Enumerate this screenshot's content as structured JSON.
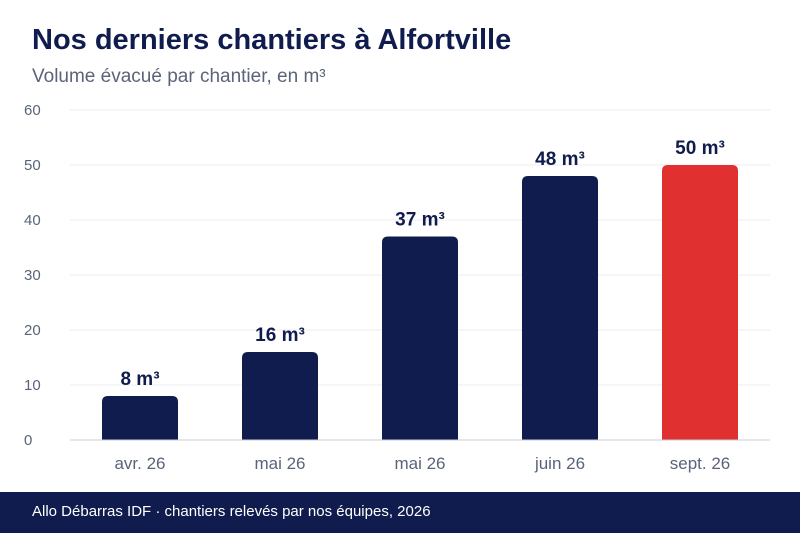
{
  "header": {
    "title": "Nos derniers chantiers à Alfortville",
    "subtitle": "Volume évacué par chantier, en m³"
  },
  "footer": {
    "source": "Allo Débarras IDF · chantiers relevés par nos équipes, 2026"
  },
  "colors": {
    "bar": "#0f1c4d",
    "highlight": "#e03030",
    "grid": "#ececf0",
    "axis_text": "#5a6478",
    "label_text": "#0f1c4d"
  },
  "chart_data": {
    "type": "bar",
    "categories": [
      "avr. 26",
      "mai 26",
      "mai 26",
      "juin 26",
      "sept. 26"
    ],
    "values": [
      8,
      16,
      37,
      48,
      50
    ],
    "value_labels": [
      "8 m³",
      "16 m³",
      "37 m³",
      "48 m³",
      "50 m³"
    ],
    "highlight_index": 4,
    "ylim": [
      0,
      60
    ],
    "yticks": [
      0,
      10,
      20,
      30,
      40,
      50,
      60
    ],
    "grid": true,
    "legend": "none"
  }
}
